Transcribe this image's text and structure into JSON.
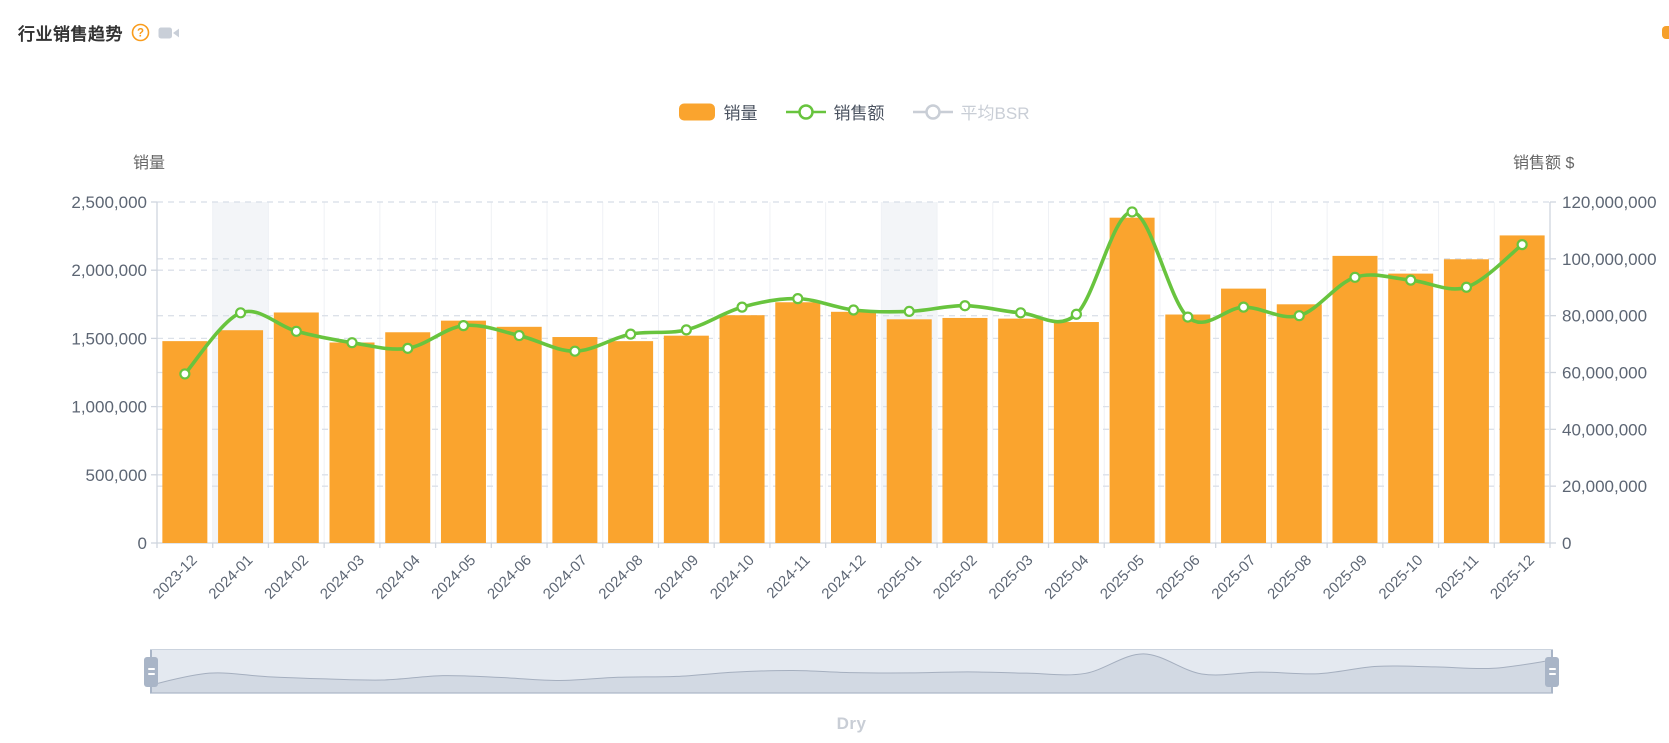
{
  "header": {
    "title": "行业销售趋势",
    "help_glyph": "?"
  },
  "legend": {
    "items": [
      {
        "label": "销量",
        "type": "bar",
        "color": "#FAA42E",
        "active": true
      },
      {
        "label": "销售额",
        "type": "line",
        "color": "#68C43E",
        "active": true
      },
      {
        "label": "平均BSR",
        "type": "line",
        "color": "#C9CED6",
        "active": false
      }
    ]
  },
  "chart_data": {
    "type": "combo",
    "title": "行业销售趋势",
    "categories": [
      "2023-12",
      "2024-01",
      "2024-02",
      "2024-03",
      "2024-04",
      "2024-05",
      "2024-06",
      "2024-07",
      "2024-08",
      "2024-09",
      "2024-10",
      "2024-11",
      "2024-12",
      "2025-01",
      "2025-02",
      "2025-03",
      "2025-04",
      "2025-05",
      "2025-06",
      "2025-07",
      "2025-08",
      "2025-09",
      "2025-10",
      "2025-11",
      "2025-12"
    ],
    "series": [
      {
        "name": "销量",
        "type": "bar",
        "axis": "left",
        "color": "#FAA42E",
        "values": [
          1480000,
          1560000,
          1690000,
          1470000,
          1545000,
          1630000,
          1585000,
          1510000,
          1480000,
          1520000,
          1670000,
          1765000,
          1695000,
          1640000,
          1650000,
          1645000,
          1620000,
          2385000,
          1675000,
          1865000,
          1750000,
          2105000,
          1975000,
          2080000,
          2255000
        ]
      },
      {
        "name": "销售额",
        "type": "line",
        "axis": "right",
        "color": "#68C43E",
        "values": [
          59500000,
          81000000,
          74500000,
          70500000,
          68500000,
          76500000,
          73000000,
          67500000,
          73500000,
          75000000,
          83000000,
          86000000,
          82000000,
          81500000,
          83500000,
          81000000,
          80500000,
          116500000,
          79500000,
          83000000,
          80000000,
          93500000,
          92500000,
          90000000,
          105000000
        ]
      },
      {
        "name": "平均BSR",
        "type": "line",
        "axis": "none",
        "color": "#C9CED6",
        "disabled": true,
        "values": []
      }
    ],
    "left_axis": {
      "title": "销量",
      "min": 0,
      "max": 2500000,
      "step": 500000,
      "ticks": [
        "0",
        "500,000",
        "1,000,000",
        "1,500,000",
        "2,000,000",
        "2,500,000"
      ]
    },
    "right_axis": {
      "title": "销售额 $",
      "min": 0,
      "max": 120000000,
      "step": 20000000,
      "ticks": [
        "0",
        "20,000,000",
        "40,000,000",
        "60,000,000",
        "80,000,000",
        "100,000,000",
        "120,000,000"
      ]
    },
    "highlight_columns": [
      "2024-01",
      "2025-01"
    ],
    "grid": true,
    "legend_position": "top",
    "style": {
      "bar": "#FAA42E",
      "line": "#68C43E",
      "marker_fill": "#FFFFFF",
      "grid_dash": "#DCE1E9",
      "vgrid": "#EFF1F5",
      "axis_line": "#CFD5DE",
      "label": "#5D6674",
      "band": "#F3F5F8"
    }
  },
  "slider": {
    "shadow_fill": "#D2D9E3",
    "shadow_stroke": "#A5AFBF"
  },
  "footer": {
    "label": "Dry"
  }
}
